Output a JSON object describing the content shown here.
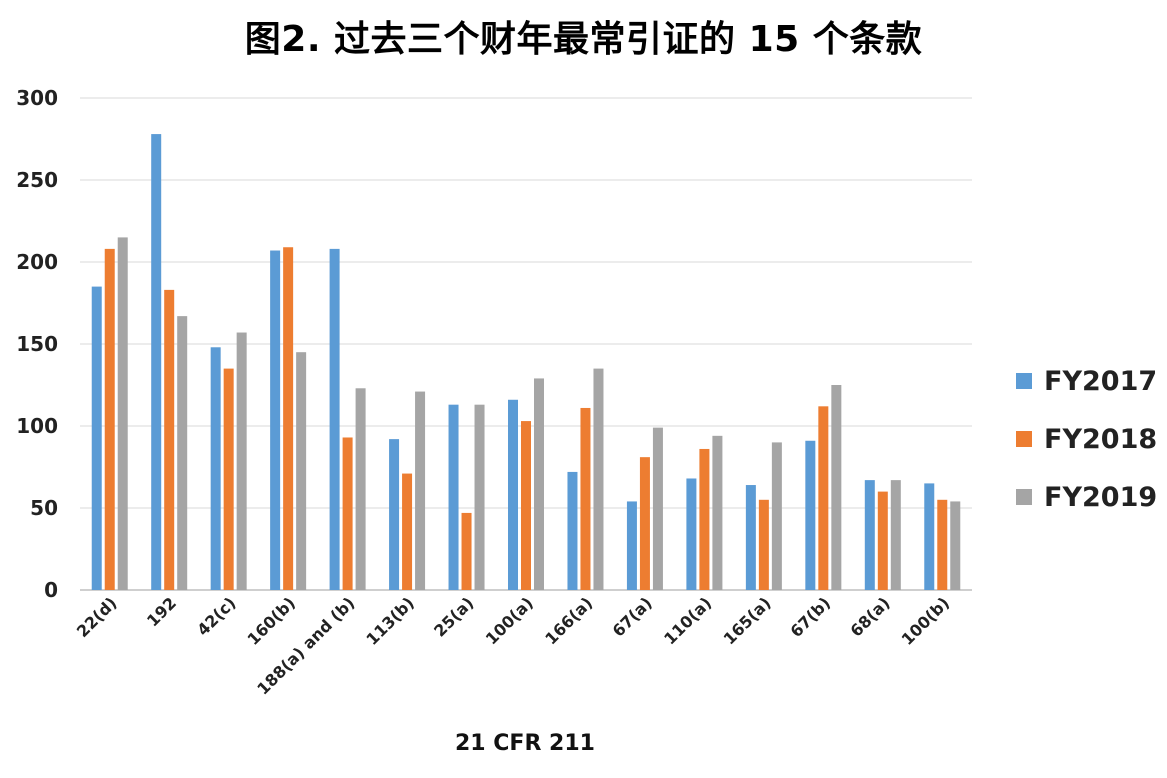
{
  "chart_data": {
    "type": "bar",
    "title": "图2. 过去三个财年最常引证的 15 个条款",
    "xlabel": "21 CFR 211",
    "ylabel": "",
    "ylim": [
      0,
      300
    ],
    "yticks": [
      0,
      50,
      100,
      150,
      200,
      250,
      300
    ],
    "grid": true,
    "legend_position": "right",
    "categories": [
      "22(d)",
      "192",
      "42(c)",
      "160(b)",
      "188(a) and (b)",
      "113(b)",
      "25(a)",
      "100(a)",
      "166(a)",
      "67(a)",
      "110(a)",
      "165(a)",
      "67(b)",
      "68(a)",
      "100(b)"
    ],
    "series": [
      {
        "name": "FY2017",
        "color": "#5b9bd5",
        "values": [
          185,
          278,
          148,
          207,
          208,
          92,
          113,
          116,
          72,
          54,
          68,
          64,
          91,
          67,
          65
        ]
      },
      {
        "name": "FY2018",
        "color": "#ed7d31",
        "values": [
          208,
          183,
          135,
          209,
          93,
          71,
          47,
          103,
          111,
          81,
          86,
          55,
          112,
          60,
          55
        ]
      },
      {
        "name": "FY2019",
        "color": "#a5a5a5",
        "values": [
          215,
          167,
          157,
          145,
          123,
          121,
          113,
          129,
          135,
          99,
          94,
          90,
          125,
          67,
          54
        ]
      }
    ]
  }
}
